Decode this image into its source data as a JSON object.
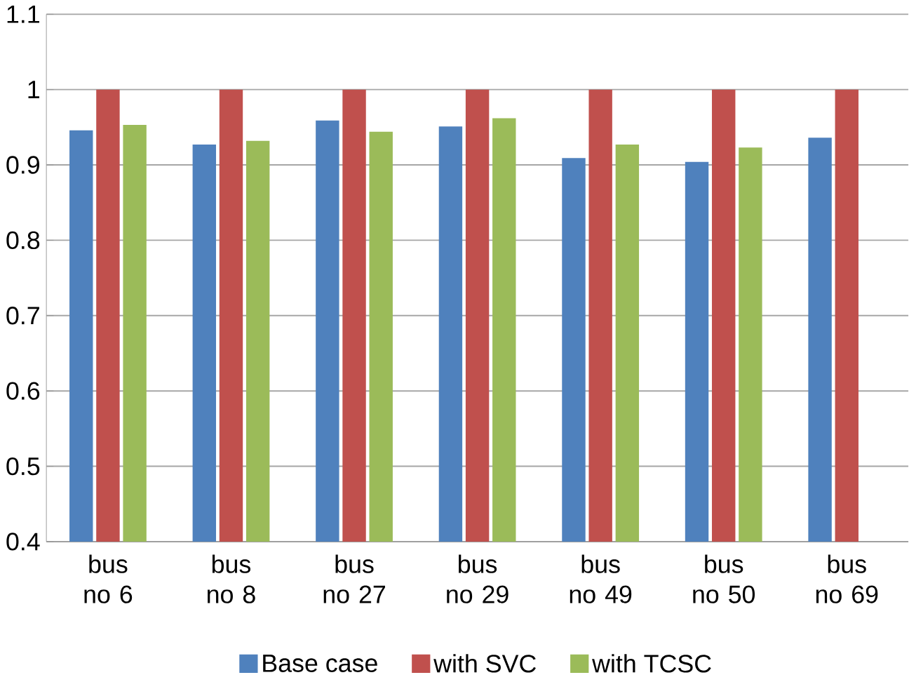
{
  "chart_data": {
    "type": "bar",
    "categories": [
      "bus no 6",
      "bus no 8",
      "bus no 27",
      "bus no 29",
      "bus no 49",
      "bus no 50",
      "bus no 69"
    ],
    "series": [
      {
        "name": "Base case",
        "color": "#4f81bd",
        "values": [
          0.946,
          0.927,
          0.959,
          0.951,
          0.909,
          0.904,
          0.936
        ]
      },
      {
        "name": "with SVC",
        "color": "#c0504d",
        "values": [
          1.0,
          1.0,
          1.0,
          1.0,
          1.0,
          1.0,
          1.0
        ]
      },
      {
        "name": "with TCSC",
        "color": "#9bbb59",
        "values": [
          0.953,
          0.932,
          0.944,
          0.962,
          0.927,
          0.923,
          null
        ]
      }
    ],
    "ylim": [
      0.4,
      1.1
    ],
    "yticks": [
      0.4,
      0.5,
      0.6,
      0.7,
      0.8,
      0.9,
      1,
      1.1
    ],
    "grid": "y",
    "legend": "bottom"
  }
}
